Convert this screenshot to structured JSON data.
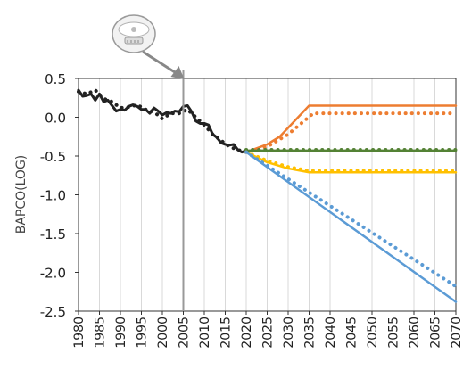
{
  "chart_data": {
    "type": "line",
    "title": "",
    "xlabel": "",
    "ylabel": "BAPCO(LOG)",
    "xlim": [
      1980,
      2070
    ],
    "ylim": [
      -2.5,
      0.5
    ],
    "yticks": [
      "0.5",
      "0.0",
      "-0.5",
      "-1.0",
      "-1.5",
      "-2.0",
      "-2.5"
    ],
    "xticks": [
      "1980",
      "1985",
      "1990",
      "1995",
      "2000",
      "2005",
      "2010",
      "2015",
      "2020",
      "2025",
      "2030",
      "2035",
      "2040",
      "2045",
      "2050",
      "2055",
      "2060",
      "2065",
      "2070"
    ],
    "grid": "vertical",
    "marker_year": 2005,
    "marker_icon": "smoke-detector-icon",
    "colors": {
      "historical": "#222222",
      "orange": "#ED7D31",
      "green": "#548235",
      "yellow": "#FFC000",
      "blue": "#5B9BD5",
      "marker_line": "#999999",
      "arrow": "#888888"
    },
    "series": [
      {
        "key": "historical",
        "style": "solid",
        "color": "#222222",
        "x": [
          1980,
          1981,
          1982,
          1983,
          1984,
          1985,
          1986,
          1987,
          1988,
          1989,
          1990,
          1991,
          1992,
          1993,
          1994,
          1995,
          1996,
          1997,
          1998,
          1999,
          2000,
          2001,
          2002,
          2003,
          2004,
          2005,
          2006,
          2007,
          2008,
          2009,
          2010,
          2011,
          2012,
          2013,
          2014,
          2015,
          2016,
          2017,
          2018,
          2019,
          2020
        ],
        "y": [
          0.35,
          0.27,
          0.28,
          0.3,
          0.22,
          0.3,
          0.2,
          0.22,
          0.15,
          0.08,
          0.1,
          0.09,
          0.14,
          0.16,
          0.14,
          0.1,
          0.1,
          0.05,
          0.12,
          0.08,
          0.03,
          0.06,
          0.05,
          0.08,
          0.07,
          0.14,
          0.15,
          0.07,
          -0.05,
          -0.08,
          -0.08,
          -0.1,
          -0.22,
          -0.26,
          -0.33,
          -0.35,
          -0.36,
          -0.35,
          -0.42,
          -0.45,
          -0.43
        ]
      },
      {
        "key": "historical-dotted",
        "style": "dotted",
        "color": "#222222",
        "x": [
          1980,
          1982,
          1984,
          1986,
          1988,
          1990,
          1992,
          1994,
          1996,
          1998,
          2000,
          2002,
          2004,
          2006,
          2008,
          2010,
          2012,
          2014,
          2016,
          2018,
          2020
        ],
        "y": [
          0.33,
          0.3,
          0.35,
          0.24,
          0.2,
          0.12,
          0.13,
          0.16,
          0.1,
          0.07,
          -0.02,
          0.05,
          0.05,
          0.1,
          0.0,
          -0.1,
          -0.22,
          -0.3,
          -0.38,
          -0.42,
          -0.45
        ]
      },
      {
        "key": "orange-solid",
        "style": "solid",
        "color": "#ED7D31",
        "x": [
          2020,
          2025,
          2028,
          2035,
          2070
        ],
        "y": [
          -0.45,
          -0.35,
          -0.25,
          0.15,
          0.15
        ]
      },
      {
        "key": "orange-dotted",
        "style": "dotted",
        "color": "#ED7D31",
        "x": [
          2020,
          2025,
          2030,
          2036,
          2070
        ],
        "y": [
          -0.45,
          -0.38,
          -0.22,
          0.05,
          0.05
        ]
      },
      {
        "key": "green-solid",
        "style": "solid",
        "color": "#548235",
        "x": [
          2020,
          2070
        ],
        "y": [
          -0.43,
          -0.43
        ]
      },
      {
        "key": "green-dotted",
        "style": "dotted",
        "color": "#548235",
        "x": [
          2020,
          2070
        ],
        "y": [
          -0.42,
          -0.42
        ]
      },
      {
        "key": "yellow-solid",
        "style": "solid",
        "color": "#FFC000",
        "x": [
          2020,
          2025,
          2030,
          2035,
          2070
        ],
        "y": [
          -0.45,
          -0.58,
          -0.66,
          -0.71,
          -0.71
        ]
      },
      {
        "key": "yellow-dotted",
        "style": "dotted",
        "color": "#FFC000",
        "x": [
          2020,
          2025,
          2030,
          2035,
          2070
        ],
        "y": [
          -0.45,
          -0.56,
          -0.64,
          -0.69,
          -0.69
        ]
      },
      {
        "key": "blue-solid",
        "style": "solid",
        "color": "#5B9BD5",
        "x": [
          2020,
          2070
        ],
        "y": [
          -0.45,
          -2.38
        ]
      },
      {
        "key": "blue-dotted",
        "style": "dotted",
        "color": "#5B9BD5",
        "x": [
          2020,
          2070
        ],
        "y": [
          -0.45,
          -2.18
        ]
      }
    ]
  }
}
